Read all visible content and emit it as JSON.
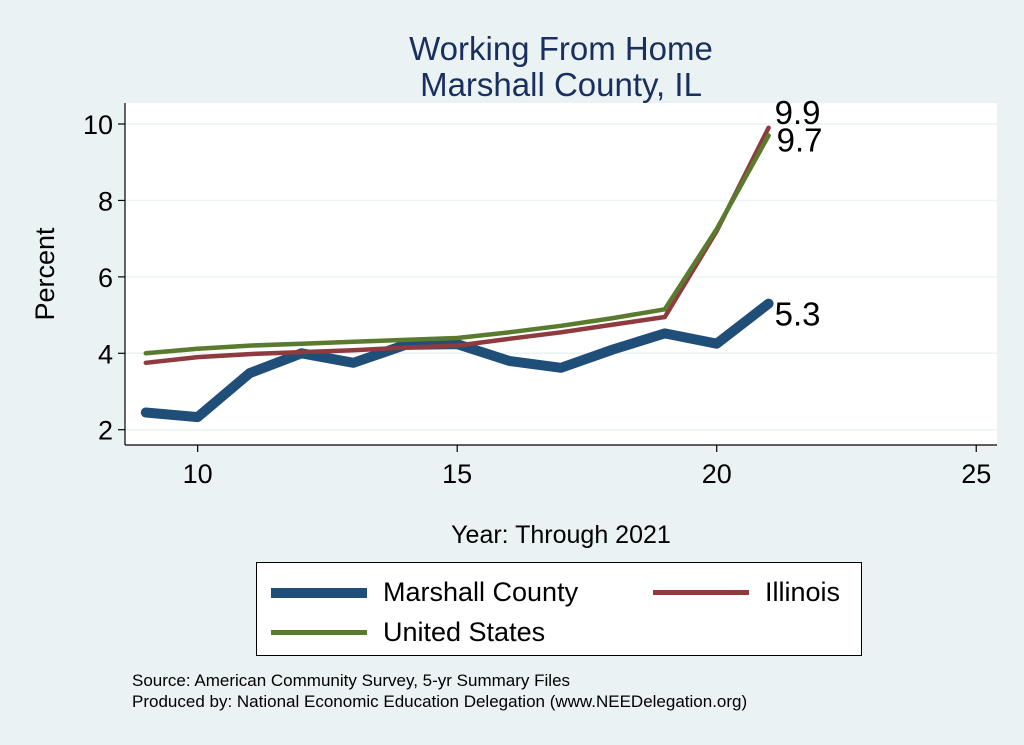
{
  "chart_data": {
    "type": "line",
    "title": "Working From Home",
    "subtitle": "Marshall County, IL",
    "xlabel": "Year: Through 2021",
    "ylabel": "Percent",
    "xlim": [
      8.6,
      25.4
    ],
    "ylim": [
      1.6,
      10.55
    ],
    "xticks": [
      10,
      15,
      20,
      25
    ],
    "yticks": [
      2,
      4,
      6,
      8,
      10
    ],
    "grid": true,
    "legend_position": "bottom",
    "series": [
      {
        "name": "Marshall County",
        "color": "#1f4e79",
        "x": [
          9,
          10,
          11,
          12,
          13,
          14,
          15,
          16,
          17,
          18,
          19,
          20,
          21
        ],
        "y": [
          2.45,
          2.33,
          3.48,
          4.0,
          3.75,
          4.22,
          4.24,
          3.8,
          3.62,
          4.1,
          4.52,
          4.25,
          5.3
        ],
        "end_label": "5.3"
      },
      {
        "name": "Illinois",
        "color": "#8e3a3f",
        "x": [
          9,
          10,
          11,
          12,
          13,
          14,
          15,
          16,
          17,
          18,
          19,
          20,
          21
        ],
        "y": [
          3.75,
          3.9,
          3.98,
          4.03,
          4.08,
          4.15,
          4.2,
          4.38,
          4.55,
          4.75,
          4.95,
          7.2,
          9.9
        ],
        "end_label": "9.9"
      },
      {
        "name": "United States",
        "color": "#5a7a2e",
        "x": [
          9,
          10,
          11,
          12,
          13,
          14,
          15,
          16,
          17,
          18,
          19,
          20,
          21
        ],
        "y": [
          4.0,
          4.12,
          4.2,
          4.25,
          4.3,
          4.35,
          4.4,
          4.55,
          4.72,
          4.92,
          5.15,
          7.25,
          9.7
        ],
        "end_label": "9.7"
      }
    ]
  },
  "source": {
    "line1": "Source: American Community Survey, 5-yr Summary Files",
    "line2": "Produced by: National Economic Education Delegation (www.NEEDelegation.org)"
  },
  "colors": {
    "background": "#eaf2f3",
    "plot_background": "#ffffff",
    "title": "#1a2f5e",
    "grid": "#eaf2f3"
  }
}
